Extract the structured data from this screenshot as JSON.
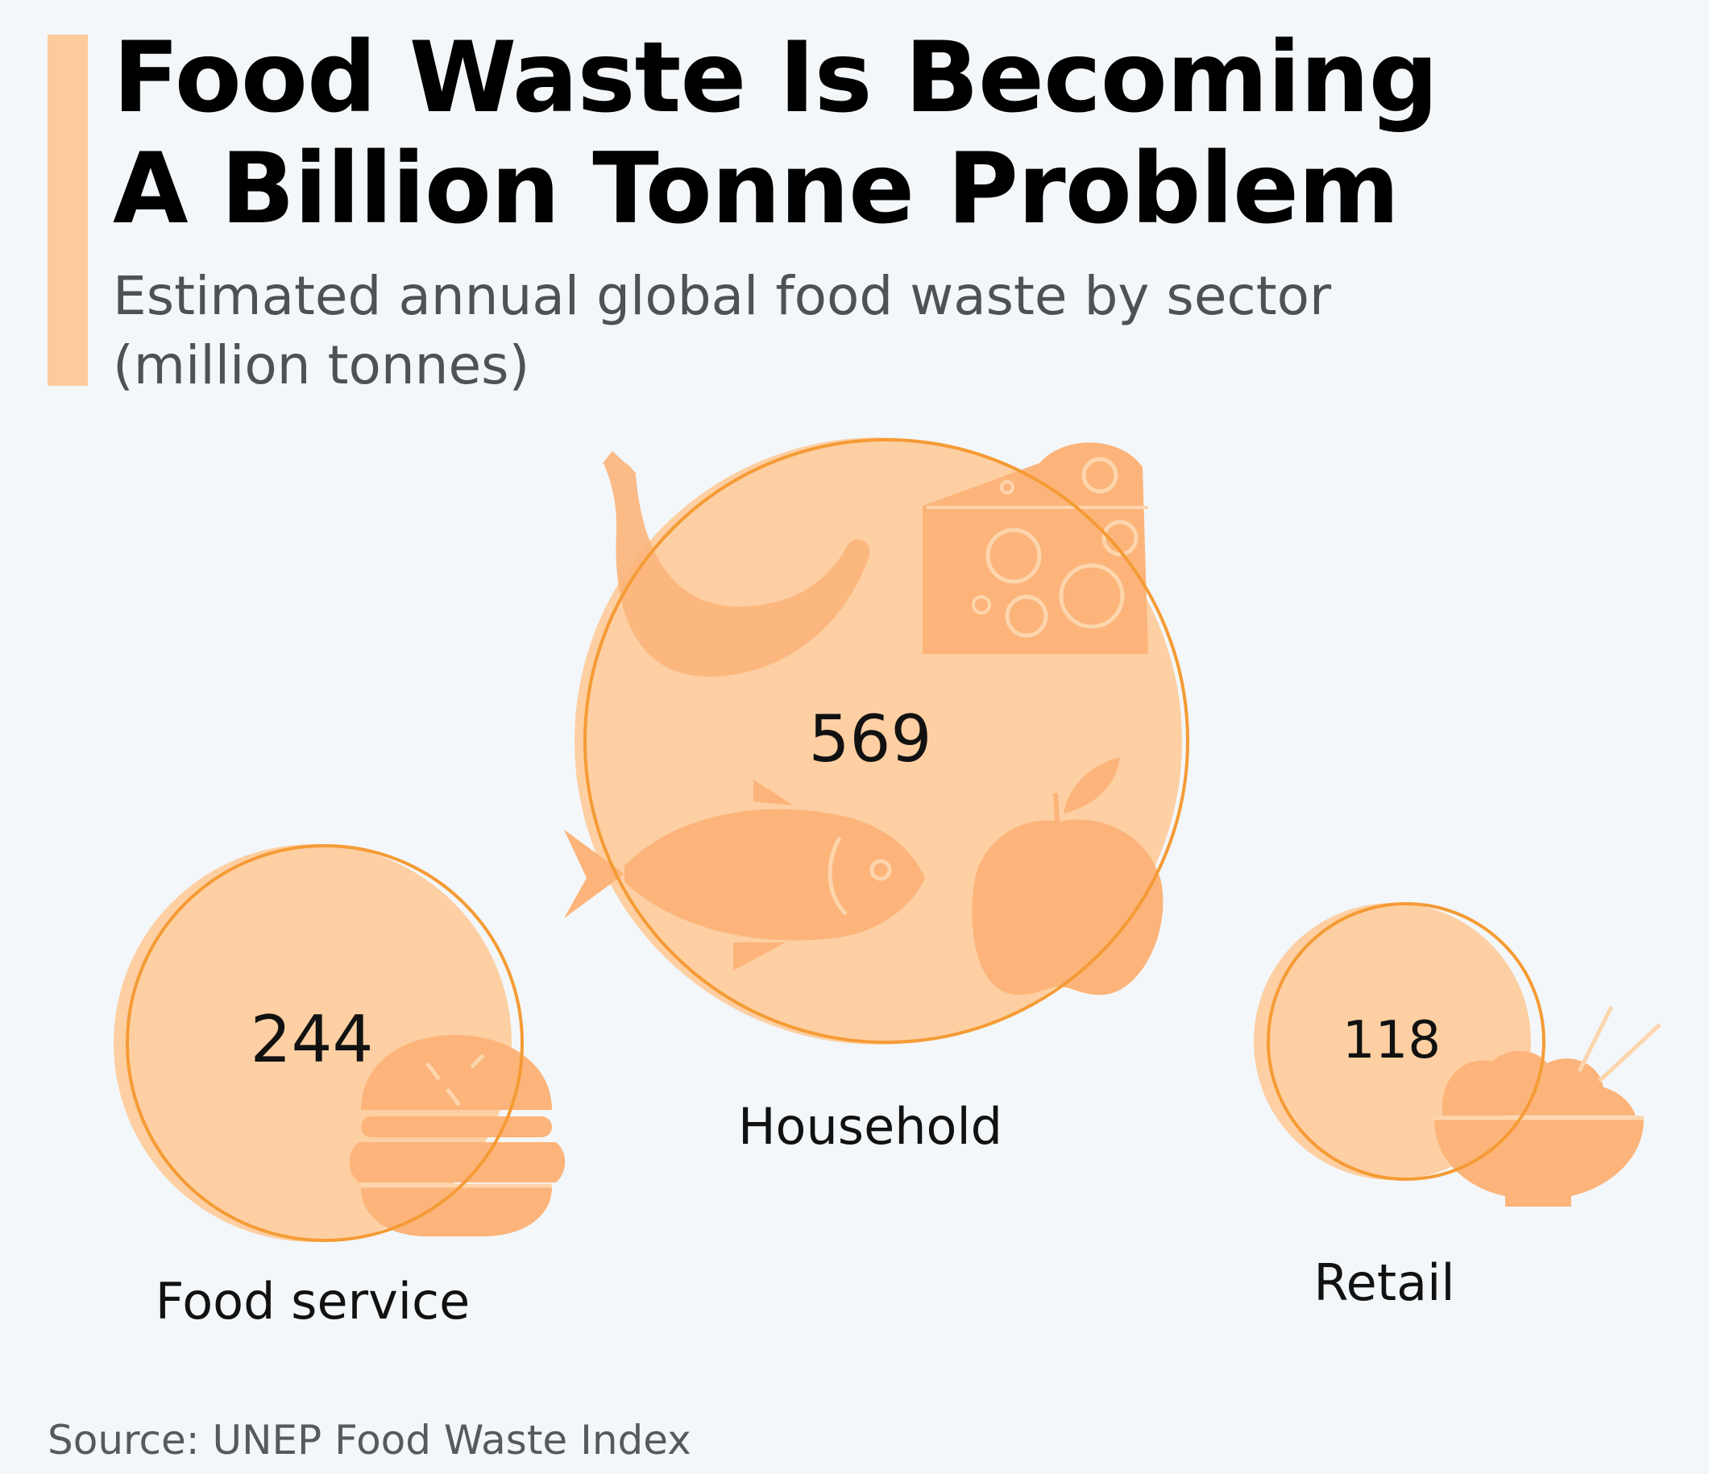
{
  "header": {
    "title_line1": "Food Waste Is Becoming",
    "title_line2": "A Billion Tonne Problem",
    "subtitle_line1": "Estimated annual global food waste by sector",
    "subtitle_line2": "(million tonnes)"
  },
  "source": "Source: UNEP Food Waste Index",
  "colors": {
    "accent": "#fdcb9b",
    "bubble_fill": "#fdcfa2",
    "bubble_outline": "#f59b35",
    "icon_fill": "#fcb47a",
    "background": "#f3f7fa"
  },
  "chart_data": {
    "type": "bubble",
    "categories": [
      "Household",
      "Food service",
      "Retail"
    ],
    "values": [
      569,
      244,
      118
    ],
    "value_labels": [
      "569",
      "244",
      "118"
    ],
    "unit": "million tonnes",
    "icons": [
      [
        "banana-icon",
        "cheese-icon",
        "fish-icon",
        "apple-icon"
      ],
      [
        "burger-icon"
      ],
      [
        "rice-bowl-icon"
      ]
    ]
  }
}
